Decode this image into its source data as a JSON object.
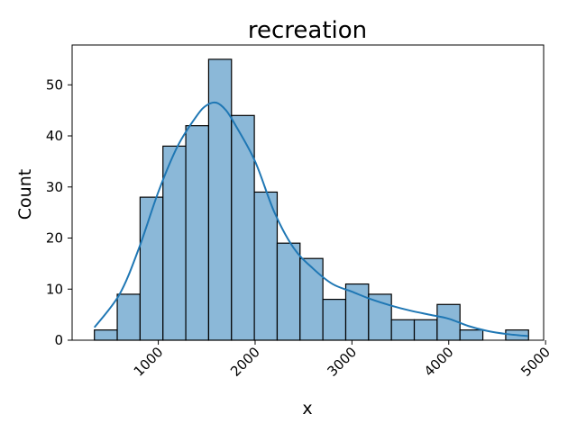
{
  "chart_data": {
    "type": "bar",
    "title": "recreation",
    "xlabel": "x",
    "ylabel": "Count",
    "xlim": [
      110,
      4980
    ],
    "ylim": [
      0,
      57.8
    ],
    "xticks": [
      1000,
      2000,
      3000,
      4000,
      5000
    ],
    "yticks": [
      0,
      10,
      20,
      30,
      40,
      50
    ],
    "bin_edges": [
      340,
      576,
      812,
      1048,
      1284,
      1520,
      1756,
      1992,
      2228,
      2464,
      2700,
      2936,
      3172,
      3408,
      3644,
      3880,
      4116,
      4352,
      4588,
      4824
    ],
    "counts": [
      2,
      9,
      28,
      38,
      42,
      55,
      44,
      29,
      19,
      16,
      8,
      11,
      9,
      4,
      4,
      7,
      2,
      0,
      2
    ],
    "kde": {
      "x": [
        340,
        600,
        800,
        1000,
        1200,
        1400,
        1500,
        1600,
        1700,
        1800,
        2000,
        2200,
        2400,
        2600,
        2800,
        3000,
        3200,
        3400,
        3600,
        3800,
        4000,
        4200,
        4400,
        4600,
        4820
      ],
      "y": [
        2.5,
        9,
        18,
        29,
        38,
        44,
        46,
        46.5,
        45,
        42,
        35,
        25,
        18,
        14,
        11,
        9.5,
        8,
        6.8,
        5.8,
        5,
        4.2,
        2.8,
        1.8,
        1.2,
        0.8
      ]
    },
    "grid": false,
    "legend": "none",
    "colors": {
      "bar_fill": "#8bb8d8",
      "bar_edge": "#000000",
      "kde_line": "#1f77b4"
    }
  }
}
